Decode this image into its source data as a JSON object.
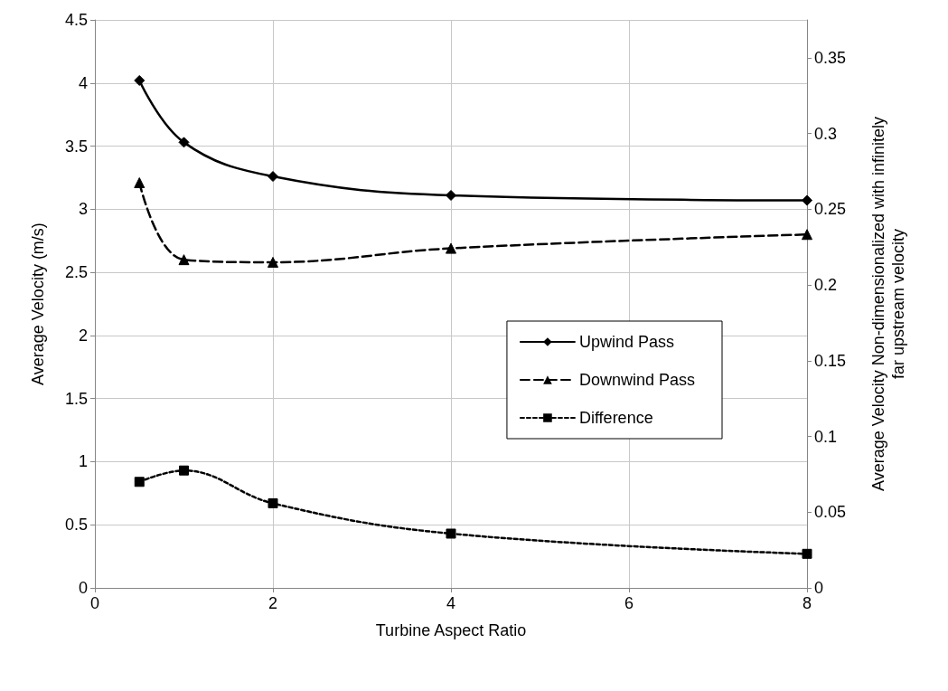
{
  "chart_data": {
    "type": "line",
    "xlabel": "Turbine Aspect Ratio",
    "ylabel": "Average Velocity (m/s)",
    "y2label": "Average Velocity Non-dimensionalized with infinitely\nfar upstream velocity",
    "x": [
      0.5,
      1,
      2,
      4,
      8
    ],
    "series": [
      {
        "name": "Upwind Pass",
        "color": "#000000",
        "marker": "diamond",
        "line_style": "solid",
        "values": [
          4.02,
          3.53,
          3.26,
          3.11,
          3.07
        ]
      },
      {
        "name": "Downwind Pass",
        "color": "#000000",
        "marker": "triangle",
        "line_style": "dashed",
        "values": [
          3.21,
          2.6,
          2.58,
          2.69,
          2.8
        ]
      },
      {
        "name": "Difference",
        "color": "#000000",
        "marker": "square",
        "line_style": "dotted",
        "values": [
          0.84,
          0.93,
          0.67,
          0.43,
          0.27
        ]
      }
    ],
    "xlim": [
      0,
      8
    ],
    "xticks": [
      0,
      2,
      4,
      6,
      8
    ],
    "ylim": [
      0,
      4.5
    ],
    "yticks": [
      0,
      0.5,
      1,
      1.5,
      2,
      2.5,
      3,
      3.5,
      4,
      4.5
    ],
    "y2lim": [
      0,
      0.375
    ],
    "y2ticks": [
      0,
      0.05,
      0.1,
      0.15,
      0.2,
      0.25,
      0.3,
      0.35
    ],
    "grid": true,
    "legend": "right"
  }
}
